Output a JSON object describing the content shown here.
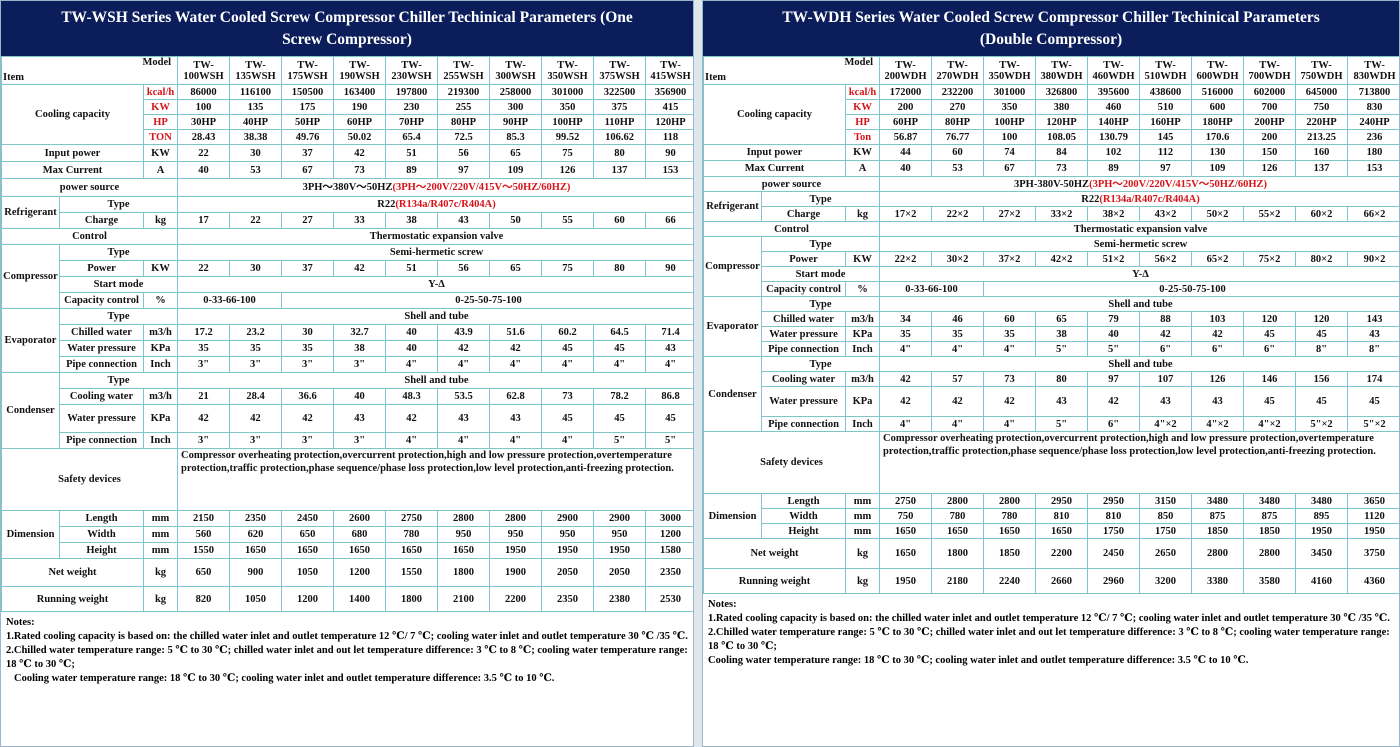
{
  "left": {
    "title_line1": "TW-WSH Series Water Cooled Screw Compressor Chiller  Techinical Parameters  (One",
    "title_line2": "Screw Compressor)",
    "model_label": "Model",
    "item_label": "Item",
    "models": [
      "TW-100WSH",
      "TW-135WSH",
      "TW-175WSH",
      "TW-190WSH",
      "TW-230WSH",
      "TW-255WSH",
      "TW-300WSH",
      "TW-350WSH",
      "TW-375WSH",
      "TW-415WSH"
    ],
    "models_a": [
      "TW-",
      "TW-",
      "TW-",
      "TW-",
      "TW-",
      "TW-",
      "TW-",
      "TW-",
      "TW-",
      "TW-"
    ],
    "models_b": [
      "100WSH",
      "135WSH",
      "175WSH",
      "190WSH",
      "230WSH",
      "255WSH",
      "300WSH",
      "350WSH",
      "375WSH",
      "415WSH"
    ],
    "cooling_label": "Cooling capacity",
    "kcal_unit": "kcal/h",
    "kw_unit": "KW",
    "hp_unit": "HP",
    "ton_unit": "TON",
    "kcal": [
      "86000",
      "116100",
      "150500",
      "163400",
      "197800",
      "219300",
      "258000",
      "301000",
      "322500",
      "356900"
    ],
    "kw": [
      "100",
      "135",
      "175",
      "190",
      "230",
      "255",
      "300",
      "350",
      "375",
      "415"
    ],
    "hp": [
      "30HP",
      "40HP",
      "50HP",
      "60HP",
      "70HP",
      "80HP",
      "90HP",
      "100HP",
      "110HP",
      "120HP"
    ],
    "ton": [
      "28.43",
      "38.38",
      "49.76",
      "50.02",
      "65.4",
      "72.5",
      "85.3",
      "99.52",
      "106.62",
      "118"
    ],
    "input_power_label": "Input power",
    "input_power_unit": "KW",
    "input_power": [
      "22",
      "30",
      "37",
      "42",
      "51",
      "56",
      "65",
      "75",
      "80",
      "90"
    ],
    "max_current_label": "Max Current",
    "max_current_unit": "A",
    "max_current": [
      "40",
      "53",
      "67",
      "73",
      "89",
      "97",
      "109",
      "126",
      "137",
      "153"
    ],
    "power_source_label": "power source",
    "power_source_black": "3PH～380V～50HZ",
    "power_source_red": "(3PH～200V/220V/415V～50HZ/60HZ)",
    "refrigerant_label": "Refrigerant",
    "type_label": "Type",
    "ref_type_black": "R22",
    "ref_type_red": "(R134a/R407c/R404A)",
    "charge_label": "Charge",
    "charge_unit": "kg",
    "charge": [
      "17",
      "22",
      "27",
      "33",
      "38",
      "43",
      "50",
      "55",
      "60",
      "66"
    ],
    "control_label": "Control",
    "control_value": "Thermostatic expansion valve",
    "compressor_label": "Compressor",
    "comp_type_value": "Semi-hermetic screw",
    "power_label": "Power",
    "power_unit": "KW",
    "comp_power": [
      "22",
      "30",
      "37",
      "42",
      "51",
      "56",
      "65",
      "75",
      "80",
      "90"
    ],
    "start_mode_label": "Start mode",
    "start_mode_value": "Y-Δ",
    "capacity_control_label": "Capacity control",
    "capacity_control_unit": "%",
    "capacity_control_a": "0-33-66-100",
    "capacity_control_b": "0-25-50-75-100",
    "evaporator_label": "Evaporator",
    "shell_tube": "Shell and tube",
    "chilled_water_label": "Chilled water",
    "chilled_water_unit": "m3/h",
    "chilled_water": [
      "17.2",
      "23.2",
      "30",
      "32.7",
      "40",
      "43.9",
      "51.6",
      "60.2",
      "64.5",
      "71.4"
    ],
    "water_pressure_label": "Water pressure",
    "water_pressure_unit": "KPa",
    "evap_pressure": [
      "35",
      "35",
      "35",
      "38",
      "40",
      "42",
      "42",
      "45",
      "45",
      "43"
    ],
    "pipe_connection_label": "Pipe connection",
    "pipe_unit": "Inch",
    "evap_pipe": [
      "3\"",
      "3\"",
      "3\"",
      "3\"",
      "4\"",
      "4\"",
      "4\"",
      "4\"",
      "4\"",
      "4\""
    ],
    "condenser_label": "Condenser",
    "cooling_water_label": "Cooling water",
    "cooling_water_unit": "m3/h",
    "cooling_water": [
      "21",
      "28.4",
      "36.6",
      "40",
      "48.3",
      "53.5",
      "62.8",
      "73",
      "78.2",
      "86.8"
    ],
    "cond_pressure": [
      "42",
      "42",
      "42",
      "43",
      "42",
      "43",
      "43",
      "45",
      "45",
      "45"
    ],
    "cond_pipe": [
      "3\"",
      "3\"",
      "3\"",
      "3\"",
      "4\"",
      "4\"",
      "4\"",
      "4\"",
      "5\"",
      "5\""
    ],
    "safety_label": "Safety devices",
    "safety_text": "Compressor overheating protection,overcurrent protection,high and low pressure protection,overtemperature protection,traffic protection,phase sequence/phase loss protection,low level protection,anti-freezing protection.",
    "dimension_label": "Dimension",
    "length_label": "Length",
    "width_label": "Width",
    "height_label": "Height",
    "mm": "mm",
    "length": [
      "2150",
      "2350",
      "2450",
      "2600",
      "2750",
      "2800",
      "2800",
      "2900",
      "2900",
      "3000"
    ],
    "width": [
      "560",
      "620",
      "650",
      "680",
      "780",
      "950",
      "950",
      "950",
      "950",
      "1200"
    ],
    "height": [
      "1550",
      "1650",
      "1650",
      "1650",
      "1650",
      "1650",
      "1950",
      "1950",
      "1950",
      "1580"
    ],
    "net_weight_label": "Net weight",
    "kg": "kg",
    "net_weight": [
      "650",
      "900",
      "1050",
      "1200",
      "1550",
      "1800",
      "1900",
      "2050",
      "2050",
      "2350"
    ],
    "running_weight_label": "Running weight",
    "running_weight": [
      "820",
      "1050",
      "1200",
      "1400",
      "1800",
      "2100",
      "2200",
      "2350",
      "2380",
      "2530"
    ],
    "notes_title": "Notes:",
    "note1": "1.Rated cooling capacity is based on: the chilled water inlet and outlet temperature 12 ℃/ 7 ℃; cooling water inlet and outlet temperature 30 ℃ /35 ℃.",
    "note2": "2.Chilled water temperature range: 5 ℃ to 30 ℃; chilled water inlet and out let temperature difference: 3 ℃ to 8 ℃; cooling water temperature range: 18 ℃ to 30 ℃;",
    "note3": "  Cooling water temperature range: 18 ℃ to 30 ℃; cooling water inlet and outlet temperature difference: 3.5 ℃ to 10 ℃."
  },
  "right": {
    "title_line1": "TW-WDH Series Water Cooled Screw Compressor Chiller  Techinical Parameters",
    "title_line2": "(Double Compressor)",
    "model_label": "Model",
    "item_label": "Item",
    "models_a": [
      "TW-",
      "TW-",
      "TW-",
      "TW-",
      "TW-",
      "TW-",
      "TW-",
      "TW-",
      "TW-",
      "TW-"
    ],
    "models_b": [
      "200WDH",
      "270WDH",
      "350WDH",
      "380WDH",
      "460WDH",
      "510WDH",
      "600WDH",
      "700WDH",
      "750WDH",
      "830WDH"
    ],
    "cooling_label": "Cooling capacity",
    "kcal_unit": "kcal/h",
    "kw_unit": "KW",
    "hp_unit": "HP",
    "ton_unit": "Ton",
    "kcal": [
      "172000",
      "232200",
      "301000",
      "326800",
      "395600",
      "438600",
      "516000",
      "602000",
      "645000",
      "713800"
    ],
    "kw": [
      "200",
      "270",
      "350",
      "380",
      "460",
      "510",
      "600",
      "700",
      "750",
      "830"
    ],
    "hp": [
      "60HP",
      "80HP",
      "100HP",
      "120HP",
      "140HP",
      "160HP",
      "180HP",
      "200HP",
      "220HP",
      "240HP"
    ],
    "ton": [
      "56.87",
      "76.77",
      "100",
      "108.05",
      "130.79",
      "145",
      "170.6",
      "200",
      "213.25",
      "236"
    ],
    "input_power_label": "Input power",
    "input_power_unit": "KW",
    "input_power": [
      "44",
      "60",
      "74",
      "84",
      "102",
      "112",
      "130",
      "150",
      "160",
      "180"
    ],
    "max_current_label": "Max Current",
    "max_current_unit": "A",
    "max_current": [
      "40",
      "53",
      "67",
      "73",
      "89",
      "97",
      "109",
      "126",
      "137",
      "153"
    ],
    "power_source_label": "power source",
    "power_source_black": "3PH-380V-50HZ",
    "power_source_red": "(3PH～200V/220V/415V～50HZ/60HZ)",
    "refrigerant_label": "Refrigerant",
    "type_label": "Type",
    "ref_type_black": "R22",
    "ref_type_red": "(R134a/R407c/R404A)",
    "charge_label": "Charge",
    "charge_unit": "kg",
    "charge": [
      "17×2",
      "22×2",
      "27×2",
      "33×2",
      "38×2",
      "43×2",
      "50×2",
      "55×2",
      "60×2",
      "66×2"
    ],
    "control_label": "Control",
    "control_value": "Thermostatic expansion valve",
    "compressor_label": "Compressor",
    "comp_type_value": "Semi-hermetic screw",
    "power_label": "Power",
    "power_unit": "KW",
    "comp_power": [
      "22×2",
      "30×2",
      "37×2",
      "42×2",
      "51×2",
      "56×2",
      "65×2",
      "75×2",
      "80×2",
      "90×2"
    ],
    "start_mode_label": "Start mode",
    "start_mode_value": "Y-Δ",
    "capacity_control_label": "Capacity control",
    "capacity_control_unit": "%",
    "capacity_control_a": "0-33-66-100",
    "capacity_control_b": "0-25-50-75-100",
    "evaporator_label": "Evaporator",
    "shell_tube": "Shell and tube",
    "chilled_water_label": "Chilled water",
    "chilled_water_unit": "m3/h",
    "chilled_water": [
      "34",
      "46",
      "60",
      "65",
      "79",
      "88",
      "103",
      "120",
      "120",
      "143"
    ],
    "water_pressure_label": "Water pressure",
    "water_pressure_unit": "KPa",
    "evap_pressure": [
      "35",
      "35",
      "35",
      "38",
      "40",
      "42",
      "42",
      "45",
      "45",
      "43"
    ],
    "pipe_connection_label": "Pipe connection",
    "pipe_unit": "Inch",
    "evap_pipe": [
      "4\"",
      "4\"",
      "4\"",
      "5\"",
      "5\"",
      "6\"",
      "6\"",
      "6\"",
      "8\"",
      "8\""
    ],
    "condenser_label": "Condenser",
    "cooling_water_label": "Cooling water",
    "cooling_water_unit": "m3/h",
    "cooling_water": [
      "42",
      "57",
      "73",
      "80",
      "97",
      "107",
      "126",
      "146",
      "156",
      "174"
    ],
    "cond_pressure": [
      "42",
      "42",
      "42",
      "43",
      "42",
      "43",
      "43",
      "45",
      "45",
      "45"
    ],
    "cond_pipe": [
      "4\"",
      "4\"",
      "4\"",
      "5\"",
      "6\"",
      "4\"×2",
      "4\"×2",
      "4\"×2",
      "5\"×2",
      "5\"×2"
    ],
    "safety_label": "Safety devices",
    "safety_text": "Compressor overheating protection,overcurrent protection,high and low pressure protection,overtemperature protection,traffic protection,phase sequence/phase loss protection,low level protection,anti-freezing protection.",
    "dimension_label": "Dimension",
    "length_label": "Length",
    "width_label": "Width",
    "height_label": "Height",
    "mm": "mm",
    "length": [
      "2750",
      "2800",
      "2800",
      "2950",
      "2950",
      "3150",
      "3480",
      "3480",
      "3480",
      "3650"
    ],
    "width": [
      "750",
      "780",
      "780",
      "810",
      "810",
      "850",
      "875",
      "875",
      "895",
      "1120"
    ],
    "height": [
      "1650",
      "1650",
      "1650",
      "1650",
      "1750",
      "1750",
      "1850",
      "1850",
      "1950",
      "1950"
    ],
    "net_weight_label": "Net weight",
    "kg": "kg",
    "net_weight": [
      "1650",
      "1800",
      "1850",
      "2200",
      "2450",
      "2650",
      "2800",
      "2800",
      "3450",
      "3750"
    ],
    "running_weight_label": "Running weight",
    "running_weight": [
      "1950",
      "2180",
      "2240",
      "2660",
      "2960",
      "3200",
      "3380",
      "3580",
      "4160",
      "4360"
    ],
    "notes_title": "Notes:",
    "note1": "1.Rated cooling capacity is based on: the chilled water inlet and outlet temperature 12 ℃/ 7 ℃; cooling water inlet and outlet temperature 30 ℃ /35 ℃.",
    "note2": "2.Chilled water temperature range: 5 ℃ to 30 ℃; chilled water inlet and out let temperature difference: 3 ℃ to 8 ℃; cooling water temperature range: 18 ℃ to 30 ℃;",
    "note3": "Cooling water temperature range: 18 ℃ to 30 ℃; cooling water inlet and outlet temperature difference: 3.5 ℃ to 10 ℃."
  }
}
